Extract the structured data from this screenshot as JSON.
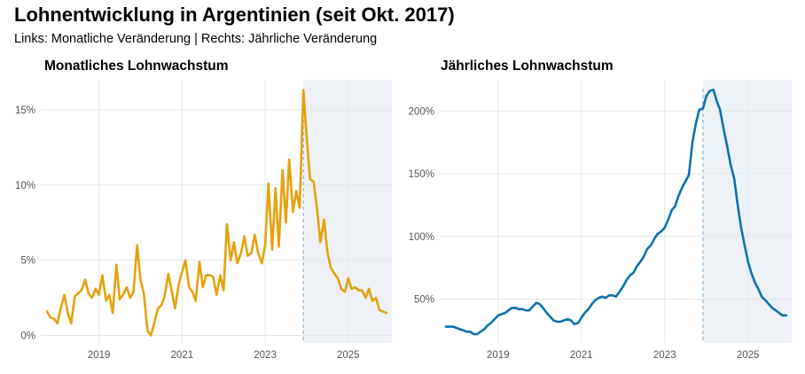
{
  "title": "Lohnentwicklung in Argentinien (seit Okt. 2017)",
  "subtitle": "Links: Monatliche Veränderung | Rechts: Jährliche Veränderung",
  "colors": {
    "monthly": "#E6A10C",
    "annual": "#0A72B0",
    "shade": "#EEF2F7",
    "marker": "#86B6D9",
    "grid": "#E6E6E6"
  },
  "chart_data": [
    {
      "type": "line",
      "title": "Monatliches Lohnwachstum",
      "xlabel": "",
      "ylabel": "",
      "x_ticks": [
        "2019",
        "2021",
        "2023",
        "2025"
      ],
      "y_ticks": [
        "0%",
        "5%",
        "10%",
        "15%"
      ],
      "xlim": [
        2017.6,
        2026.05
      ],
      "ylim": [
        -0.5,
        17
      ],
      "grid": true,
      "shaded_region_start": 2023.92,
      "vertical_marker": 2023.92,
      "series": [
        {
          "x": [
            2017.75,
            2017.83,
            2017.92,
            2018.0,
            2018.08,
            2018.17,
            2018.25,
            2018.33,
            2018.42,
            2018.5,
            2018.58,
            2018.67,
            2018.75,
            2018.83,
            2018.92,
            2019.0,
            2019.08,
            2019.17,
            2019.25,
            2019.33,
            2019.42,
            2019.5,
            2019.58,
            2019.67,
            2019.75,
            2019.83,
            2019.92,
            2020.0,
            2020.08,
            2020.17,
            2020.25,
            2020.33,
            2020.42,
            2020.5,
            2020.58,
            2020.67,
            2020.75,
            2020.83,
            2020.92,
            2021.0,
            2021.08,
            2021.17,
            2021.25,
            2021.33,
            2021.42,
            2021.5,
            2021.58,
            2021.67,
            2021.75,
            2021.83,
            2021.92,
            2022.0,
            2022.08,
            2022.17,
            2022.25,
            2022.33,
            2022.42,
            2022.5,
            2022.58,
            2022.67,
            2022.75,
            2022.83,
            2022.92,
            2023.0,
            2023.08,
            2023.17,
            2023.25,
            2023.33,
            2023.42,
            2023.5,
            2023.58,
            2023.67,
            2023.75,
            2023.83,
            2023.92,
            2024.0,
            2024.08,
            2024.17,
            2024.25,
            2024.33,
            2024.42,
            2024.5,
            2024.58,
            2024.67,
            2024.75,
            2024.83,
            2024.92,
            2025.0,
            2025.08,
            2025.17,
            2025.25,
            2025.33,
            2025.42,
            2025.5,
            2025.58,
            2025.67,
            2025.75,
            2025.83,
            2025.92
          ],
          "values": [
            1.6,
            1.2,
            1.1,
            0.8,
            1.8,
            2.7,
            1.5,
            0.8,
            2.6,
            2.8,
            3.0,
            3.7,
            2.8,
            2.5,
            3.1,
            2.7,
            4.0,
            2.3,
            2.7,
            1.5,
            4.7,
            2.4,
            2.7,
            3.2,
            2.5,
            2.9,
            6.0,
            3.7,
            2.8,
            0.3,
            0.0,
            0.8,
            1.8,
            2.0,
            2.6,
            4.1,
            3.0,
            1.8,
            3.4,
            4.2,
            5.0,
            3.2,
            2.9,
            2.3,
            4.9,
            3.2,
            4.0,
            4.0,
            3.9,
            2.7,
            4.0,
            3.0,
            7.4,
            5.0,
            6.2,
            4.8,
            5.5,
            6.6,
            5.3,
            5.5,
            6.7,
            5.5,
            4.8,
            6.0,
            10.1,
            5.7,
            9.8,
            5.9,
            11.0,
            7.5,
            11.7,
            8.2,
            9.6,
            8.5,
            16.3,
            13.2,
            10.4,
            10.2,
            8.4,
            6.2,
            7.7,
            5.5,
            4.5,
            4.1,
            3.8,
            3.1,
            2.9,
            3.8,
            3.1,
            3.2,
            3.0,
            3.0,
            2.5,
            3.1,
            2.3,
            2.5,
            1.7,
            1.6,
            1.5
          ],
          "color": "#E6A10C"
        }
      ]
    },
    {
      "type": "line",
      "title": "Jährliches Lohnwachstum",
      "xlabel": "",
      "ylabel": "",
      "x_ticks": [
        "2019",
        "2021",
        "2023",
        "2025"
      ],
      "y_ticks": [
        "50%",
        "100%",
        "150%",
        "200%"
      ],
      "xlim": [
        2017.6,
        2026.05
      ],
      "ylim": [
        15,
        225
      ],
      "grid": true,
      "shaded_region_start": 2023.92,
      "vertical_marker": 2023.92,
      "series": [
        {
          "x": [
            2017.75,
            2017.83,
            2017.92,
            2018.0,
            2018.08,
            2018.17,
            2018.25,
            2018.33,
            2018.42,
            2018.5,
            2018.58,
            2018.67,
            2018.75,
            2018.83,
            2018.92,
            2019.0,
            2019.08,
            2019.17,
            2019.25,
            2019.33,
            2019.42,
            2019.5,
            2019.58,
            2019.67,
            2019.75,
            2019.83,
            2019.92,
            2020.0,
            2020.08,
            2020.17,
            2020.25,
            2020.33,
            2020.42,
            2020.5,
            2020.58,
            2020.67,
            2020.75,
            2020.83,
            2020.92,
            2021.0,
            2021.08,
            2021.17,
            2021.25,
            2021.33,
            2021.42,
            2021.5,
            2021.58,
            2021.67,
            2021.75,
            2021.83,
            2021.92,
            2022.0,
            2022.08,
            2022.17,
            2022.25,
            2022.33,
            2022.42,
            2022.5,
            2022.58,
            2022.67,
            2022.75,
            2022.83,
            2022.92,
            2023.0,
            2023.08,
            2023.17,
            2023.25,
            2023.33,
            2023.42,
            2023.5,
            2023.58,
            2023.67,
            2023.75,
            2023.83,
            2023.92,
            2024.0,
            2024.08,
            2024.17,
            2024.25,
            2024.33,
            2024.42,
            2024.5,
            2024.58,
            2024.67,
            2024.75,
            2024.83,
            2024.92,
            2025.0,
            2025.08,
            2025.17,
            2025.25,
            2025.33,
            2025.42,
            2025.5,
            2025.58,
            2025.67,
            2025.75,
            2025.83,
            2025.92
          ],
          "values": [
            28,
            28,
            28,
            27,
            26,
            25,
            24,
            24,
            22,
            22,
            24,
            26,
            29,
            31,
            34,
            37,
            38,
            39,
            41,
            43,
            43,
            42,
            42,
            41,
            41,
            44,
            47,
            46,
            43,
            39,
            36,
            33,
            32,
            32,
            33,
            34,
            33,
            30,
            31,
            35,
            39,
            42,
            46,
            49,
            51,
            52,
            51,
            53,
            53,
            52,
            56,
            60,
            65,
            69,
            71,
            76,
            80,
            84,
            90,
            93,
            98,
            102,
            104,
            107,
            113,
            121,
            124,
            132,
            139,
            144,
            149,
            176,
            190,
            201,
            202,
            212,
            216,
            217,
            208,
            201,
            185,
            172,
            158,
            146,
            126,
            108,
            93,
            80,
            71,
            63,
            58,
            52,
            49,
            46,
            43,
            41,
            39,
            37,
            37
          ],
          "color": "#0A72B0"
        }
      ]
    }
  ]
}
